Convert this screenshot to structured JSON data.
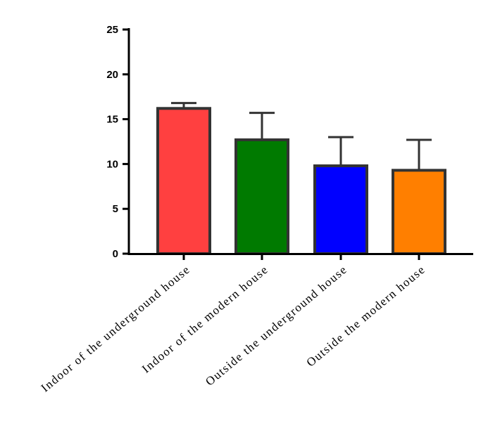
{
  "chart_data": {
    "type": "bar",
    "categories": [
      "Indoor of the underground house",
      "Indoor of the modern house",
      "Outside the underground house",
      "Outside the modern house"
    ],
    "values": [
      16.2,
      12.7,
      9.8,
      9.3
    ],
    "errors": [
      0.6,
      3.0,
      3.2,
      3.4
    ],
    "colors": [
      "#FF4040",
      "#007A00",
      "#0000FF",
      "#FF7F00"
    ],
    "ylim": [
      0,
      25
    ],
    "yticks": [
      "0",
      "5",
      "10",
      "15",
      "20",
      "25"
    ],
    "title": "",
    "xlabel": "",
    "ylabel": "",
    "grid": false
  }
}
